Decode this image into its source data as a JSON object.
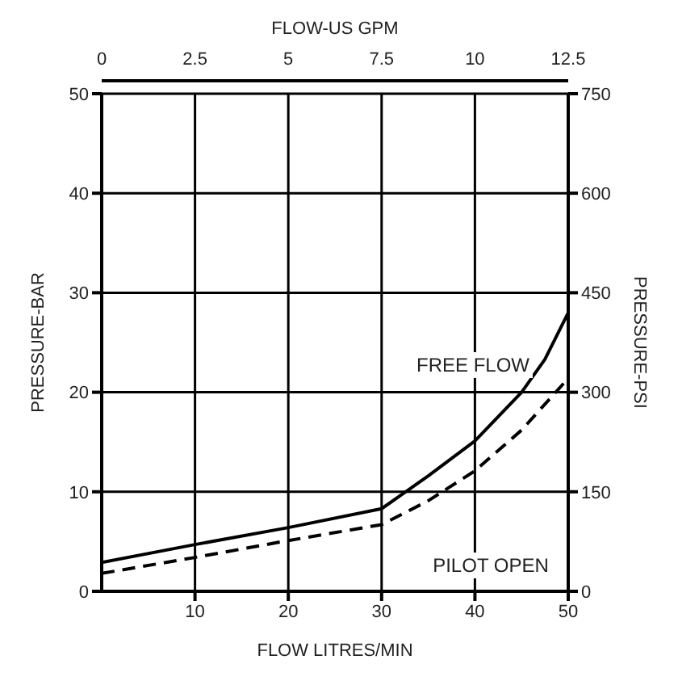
{
  "chart_data": {
    "type": "line",
    "xlabel": "FLOW LITRES/MIN",
    "ylabel": "PRESSURE-BAR",
    "y2label": "PRESSURE-PSI",
    "x2label": "FLOW-US GPM",
    "xlim": [
      0,
      50
    ],
    "xticks": [
      10,
      20,
      30,
      40,
      50
    ],
    "ylim": [
      0,
      50
    ],
    "yticks": [
      0,
      10,
      20,
      30,
      40,
      50
    ],
    "x2lim": [
      0,
      12.5
    ],
    "x2ticks": [
      0,
      2.5,
      5,
      7.5,
      10,
      12.5
    ],
    "y2lim": [
      0,
      750
    ],
    "y2ticks": [
      0,
      150,
      300,
      450,
      600,
      750
    ],
    "grid": true,
    "legend": false,
    "marker": "none",
    "series": [
      {
        "color": "#000000",
        "line_style": "solid",
        "x": [
          0,
          10,
          20,
          30,
          35,
          40,
          45,
          47.5,
          50
        ],
        "values": [
          2.9,
          4.7,
          6.4,
          8.3,
          11.6,
          15.1,
          20,
          23.3,
          28
        ]
      },
      {
        "color": "#000000",
        "line_style": "dashed",
        "x": [
          0,
          10,
          20,
          30,
          35,
          40,
          45,
          50
        ],
        "values": [
          1.8,
          3.4,
          5.1,
          6.7,
          9.1,
          12.1,
          16.2,
          21.4
        ]
      }
    ],
    "annotations": [
      "FREE FLOW",
      "PILOT OPEN"
    ]
  }
}
